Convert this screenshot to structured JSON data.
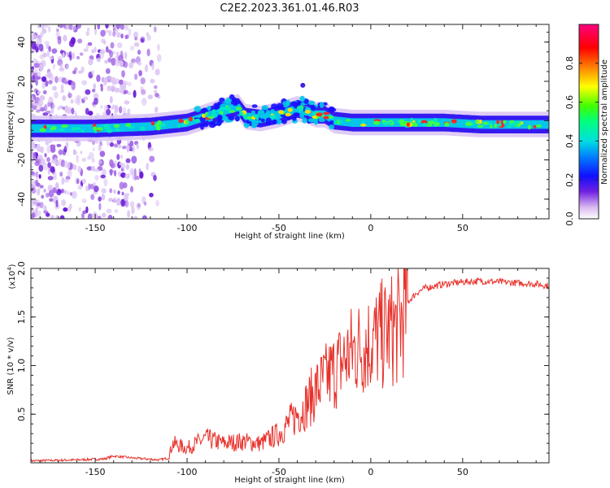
{
  "figure_title": "C2E2.2023.361.01.46.R03",
  "chart_data": [
    {
      "type": "heatmap",
      "title": "C2E2.2023.361.01.46.R03",
      "xlabel": "Height of straight line (km)",
      "ylabel": "Frequency (Hz)",
      "xlim": [
        -185,
        97
      ],
      "ylim": [
        -50,
        49
      ],
      "x_ticks": [
        -150,
        -100,
        -50,
        0,
        50
      ],
      "x_tick_labels": [
        "-150",
        "-100",
        "-50",
        "0",
        "50"
      ],
      "y_ticks": [
        -40,
        -20,
        0,
        20,
        40
      ],
      "y_tick_labels": [
        "-40",
        "-20",
        "0",
        "20",
        "40"
      ],
      "colorbar": {
        "label": "Normalized spectral amplitude",
        "range": [
          0.0,
          1.0
        ],
        "ticks": [
          0.0,
          0.2,
          0.4,
          0.6,
          0.8
        ],
        "tick_labels": [
          "0.0",
          "0.2",
          "0.4",
          "0.6",
          "0.8"
        ],
        "colormap": [
          "#ffffff",
          "#a050e0",
          "#2010ff",
          "#00c8ff",
          "#00ff80",
          "#40ff00",
          "#ffff00",
          "#ff8000",
          "#ff0000",
          "#ff0080"
        ]
      },
      "ridge_center_hz": [
        {
          "x": -185,
          "y": -4
        },
        {
          "x": -150,
          "y": -4
        },
        {
          "x": -120,
          "y": -3
        },
        {
          "x": -100,
          "y": -1
        },
        {
          "x": -90,
          "y": 2
        },
        {
          "x": -80,
          "y": 5
        },
        {
          "x": -72,
          "y": 7
        },
        {
          "x": -68,
          "y": 2
        },
        {
          "x": -60,
          "y": 1
        },
        {
          "x": -50,
          "y": 3
        },
        {
          "x": -40,
          "y": 6
        },
        {
          "x": -35,
          "y": 5
        },
        {
          "x": -30,
          "y": 3
        },
        {
          "x": -25,
          "y": 3
        },
        {
          "x": -20,
          "y": 0
        },
        {
          "x": -10,
          "y": -1
        },
        {
          "x": 0,
          "y": -1
        },
        {
          "x": 10,
          "y": -1
        },
        {
          "x": 20,
          "y": -1
        },
        {
          "x": 40,
          "y": -1
        },
        {
          "x": 60,
          "y": -2
        },
        {
          "x": 80,
          "y": -2
        },
        {
          "x": 97,
          "y": -2
        }
      ]
    },
    {
      "type": "line",
      "title": "",
      "xlabel": "Height of straight line (km)",
      "ylabel": "SNR (10 * v/v)",
      "y_multiplier_label": "(x10",
      "y_multiplier_exp": "4",
      "y_multiplier_close": ")",
      "xlim": [
        -185,
        97
      ],
      "ylim": [
        0,
        2.0
      ],
      "x_ticks": [
        -150,
        -100,
        -50,
        0,
        50
      ],
      "x_tick_labels": [
        "-150",
        "-100",
        "-50",
        "0",
        "50"
      ],
      "y_ticks": [
        0.5,
        1.0,
        1.5,
        2.0
      ],
      "y_tick_labels": [
        "0.5",
        "1.0",
        "1.5",
        "2.0"
      ],
      "line_color": "#e8302a",
      "series": [
        {
          "name": "SNR",
          "x": [
            -185,
            -160,
            -145,
            -140,
            -130,
            -115,
            -110,
            -108,
            -100,
            -90,
            -80,
            -70,
            -60,
            -55,
            -50,
            -45,
            -40,
            -35,
            -30,
            -25,
            -20,
            -15,
            -10,
            -5,
            0,
            5,
            10,
            15,
            20,
            25,
            30,
            40,
            50,
            60,
            70,
            80,
            90,
            97
          ],
          "values": [
            0.02,
            0.03,
            0.04,
            0.07,
            0.05,
            0.03,
            0.05,
            0.2,
            0.15,
            0.25,
            0.2,
            0.22,
            0.2,
            0.25,
            0.3,
            0.4,
            0.5,
            0.6,
            0.75,
            0.85,
            0.95,
            1.05,
            1.15,
            1.2,
            1.25,
            1.3,
            1.35,
            1.4,
            1.65,
            1.75,
            1.8,
            1.84,
            1.86,
            1.87,
            1.86,
            1.85,
            1.84,
            1.82
          ]
        }
      ]
    }
  ]
}
